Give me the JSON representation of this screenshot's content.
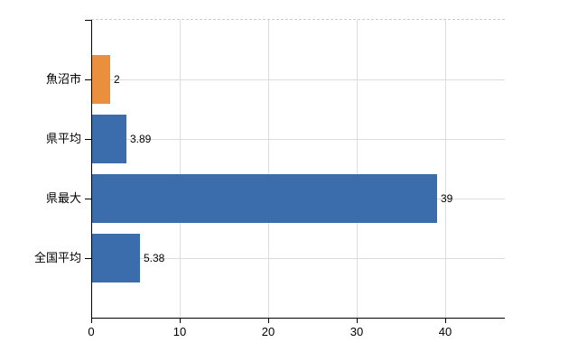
{
  "chart_data": {
    "type": "bar",
    "orientation": "horizontal",
    "title": "",
    "xlabel": "",
    "ylabel": "",
    "categories": [
      "魚沼市",
      "県平均",
      "県最大",
      "全国平均"
    ],
    "values": [
      2,
      3.89,
      39,
      5.38
    ],
    "value_labels": [
      "2",
      "3.89",
      "39",
      "5.38"
    ],
    "bar_colors": [
      "#E98F3E",
      "#3B6CAC",
      "#3B6CAC",
      "#3B6CAC"
    ],
    "x_ticks": [
      0,
      10,
      20,
      30,
      40
    ],
    "x_tick_labels": [
      "0",
      "10",
      "20",
      "30",
      "40"
    ],
    "xlim": [
      0,
      46.7
    ],
    "grid": true,
    "legend": false,
    "colors": {
      "highlight_bar": "#E98F3E",
      "default_bar": "#3B6CAC",
      "gridline": "#DCDCDC",
      "top_border": "#CCCCCC",
      "axis": "#000000",
      "text": "#000000",
      "background": "#FFFFFF"
    }
  }
}
